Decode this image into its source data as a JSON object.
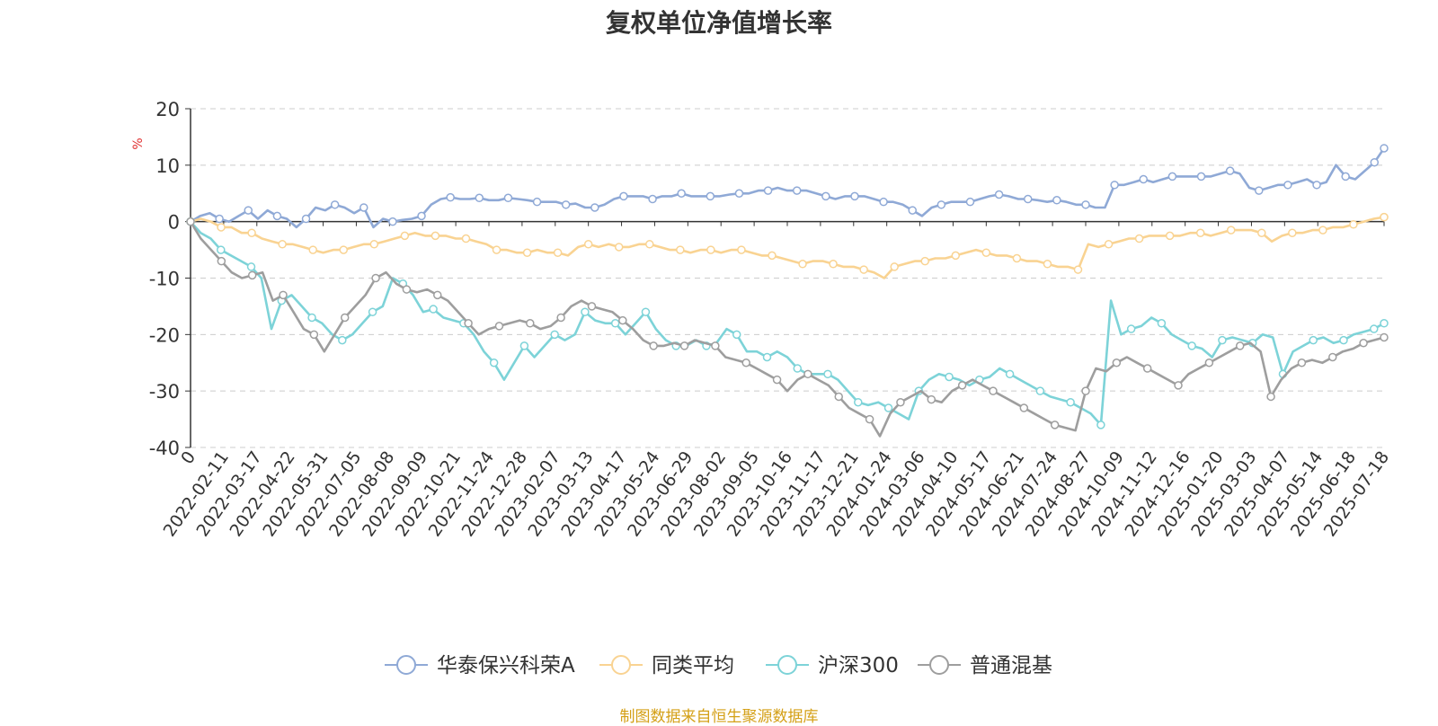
{
  "chart_data": {
    "type": "line",
    "title": "复权单位净值增长率",
    "ylabel": "%",
    "ylim": [
      -40,
      20
    ],
    "yticks": [
      "20",
      "10",
      "0",
      "-10",
      "-20",
      "-30",
      "-40"
    ],
    "x_tick_labels": [
      "0",
      "2022-02-11",
      "2022-03-17",
      "2022-04-22",
      "2022-05-31",
      "2022-07-05",
      "2022-08-08",
      "2022-09-09",
      "2022-10-21",
      "2022-11-24",
      "2022-12-28",
      "2023-02-07",
      "2023-03-13",
      "2023-04-17",
      "2023-05-24",
      "2023-06-29",
      "2023-08-02",
      "2023-09-05",
      "2023-10-16",
      "2023-11-17",
      "2023-12-21",
      "2024-01-24",
      "2024-03-06",
      "2024-04-10",
      "2024-05-17",
      "2024-06-21",
      "2024-07-24",
      "2024-08-27",
      "2024-10-09",
      "2024-11-12",
      "2024-12-16",
      "2025-01-20",
      "2025-03-03",
      "2025-04-07",
      "2025-05-14",
      "2025-06-18",
      "2025-07-18"
    ],
    "grid": "horizontal-dashed",
    "legend_position": "bottom",
    "series": [
      {
        "name": "华泰保兴科荣A",
        "color": "#8fa9d6",
        "values": [
          0,
          1.0,
          1.5,
          0.5,
          0.0,
          1.0,
          2.0,
          0.5,
          2.0,
          1.0,
          0.5,
          -1.0,
          0.5,
          2.5,
          2.0,
          3.0,
          2.5,
          1.5,
          2.5,
          -1.0,
          0.5,
          0.0,
          0.3,
          0.5,
          1.0,
          3.0,
          4.0,
          4.3,
          4.0,
          4.0,
          4.2,
          3.8,
          3.8,
          4.2,
          4.0,
          3.8,
          3.5,
          3.5,
          3.5,
          3.0,
          3.2,
          2.5,
          2.5,
          3.0,
          4.0,
          4.5,
          4.5,
          4.5,
          4.0,
          4.5,
          4.5,
          5.0,
          4.5,
          4.5,
          4.5,
          4.5,
          4.8,
          5.0,
          5.0,
          5.5,
          5.5,
          6.0,
          5.5,
          5.5,
          5.5,
          5.0,
          4.5,
          4.0,
          4.5,
          4.5,
          4.5,
          4.0,
          3.5,
          3.5,
          3.0,
          2.0,
          1.0,
          2.5,
          3.0,
          3.5,
          3.5,
          3.5,
          4.0,
          4.5,
          4.8,
          4.5,
          4.0,
          4.0,
          3.8,
          3.5,
          3.8,
          3.5,
          3.0,
          3.0,
          2.5,
          2.5,
          6.5,
          6.5,
          7.0,
          7.5,
          7.0,
          7.5,
          8.0,
          8.0,
          8.0,
          8.0,
          8.0,
          8.5,
          9.0,
          8.5,
          6.0,
          5.5,
          6.0,
          6.5,
          6.5,
          7.0,
          7.5,
          6.5,
          7.0,
          10.0,
          8.0,
          7.5,
          9.0,
          10.5,
          13.0
        ]
      },
      {
        "name": "同类平均",
        "color": "#f9d392",
        "values": [
          0,
          0.5,
          0.0,
          -1.0,
          -1.0,
          -2.0,
          -2.0,
          -3.0,
          -3.5,
          -4.0,
          -4.0,
          -4.5,
          -5.0,
          -5.5,
          -5.0,
          -5.0,
          -4.5,
          -4.0,
          -4.0,
          -3.5,
          -3.0,
          -2.5,
          -2.0,
          -2.5,
          -2.5,
          -2.5,
          -3.0,
          -3.0,
          -3.5,
          -4.0,
          -5.0,
          -5.0,
          -5.5,
          -5.5,
          -5.0,
          -5.5,
          -5.5,
          -6.0,
          -4.5,
          -4.0,
          -4.5,
          -4.0,
          -4.5,
          -4.5,
          -4.0,
          -4.0,
          -4.5,
          -5.0,
          -5.0,
          -5.5,
          -5.0,
          -5.0,
          -5.5,
          -5.0,
          -5.0,
          -5.5,
          -6.0,
          -6.0,
          -6.5,
          -7.0,
          -7.5,
          -7.0,
          -7.0,
          -7.5,
          -8.0,
          -8.0,
          -8.5,
          -9.0,
          -10.0,
          -8.0,
          -7.5,
          -7.0,
          -7.0,
          -6.5,
          -6.5,
          -6.0,
          -5.5,
          -5.0,
          -5.5,
          -6.0,
          -6.0,
          -6.5,
          -7.0,
          -7.0,
          -7.5,
          -8.0,
          -8.0,
          -8.5,
          -4.0,
          -4.5,
          -4.0,
          -3.5,
          -3.0,
          -3.0,
          -2.5,
          -2.5,
          -2.5,
          -2.5,
          -2.0,
          -2.0,
          -2.5,
          -2.0,
          -1.5,
          -1.5,
          -1.5,
          -2.0,
          -3.5,
          -2.5,
          -2.0,
          -2.0,
          -1.5,
          -1.5,
          -1.0,
          -1.0,
          -0.5,
          0.0,
          0.5,
          0.8
        ]
      },
      {
        "name": "沪深300",
        "color": "#7dd3d8",
        "values": [
          0,
          -2.0,
          -3.0,
          -5.0,
          -6.0,
          -7.0,
          -8.0,
          -10.0,
          -19.0,
          -14.0,
          -13.0,
          -15.0,
          -17.0,
          -18.0,
          -20.0,
          -21.0,
          -20.0,
          -18.0,
          -16.0,
          -15.0,
          -10.0,
          -11.0,
          -13.0,
          -16.0,
          -15.5,
          -17.0,
          -17.5,
          -18.0,
          -20.0,
          -23.0,
          -25.0,
          -28.0,
          -25.0,
          -22.0,
          -24.0,
          -22.0,
          -20.0,
          -21.0,
          -20.0,
          -16.0,
          -17.5,
          -18.0,
          -18.0,
          -20.0,
          -18.0,
          -16.0,
          -19.0,
          -21.0,
          -22.0,
          -22.0,
          -21.0,
          -22.0,
          -21.5,
          -19.0,
          -20.0,
          -23.0,
          -23.0,
          -24.0,
          -23.0,
          -24.0,
          -26.0,
          -27.0,
          -27.0,
          -27.0,
          -28.0,
          -30.0,
          -32.0,
          -32.5,
          -32.0,
          -33.0,
          -34.0,
          -35.0,
          -30.0,
          -28.0,
          -27.0,
          -27.5,
          -28.0,
          -29.0,
          -28.0,
          -27.5,
          -26.0,
          -27.0,
          -28.0,
          -29.0,
          -30.0,
          -31.0,
          -31.5,
          -32.0,
          -33.0,
          -34.0,
          -36.0,
          -14.0,
          -20.0,
          -19.0,
          -18.5,
          -17.0,
          -18.0,
          -20.0,
          -21.0,
          -22.0,
          -22.5,
          -24.0,
          -21.0,
          -20.5,
          -21.0,
          -21.5,
          -20.0,
          -20.5,
          -27.0,
          -23.0,
          -22.0,
          -21.0,
          -20.5,
          -21.5,
          -21.0,
          -20.0,
          -19.5,
          -19.0,
          -18.0
        ]
      },
      {
        "name": "普通混基",
        "color": "#9e9e9e",
        "values": [
          0,
          -3.0,
          -5.0,
          -7.0,
          -9.0,
          -10.0,
          -9.5,
          -9.0,
          -14.0,
          -13.0,
          -16.0,
          -19.0,
          -20.0,
          -23.0,
          -20.0,
          -17.0,
          -15.0,
          -13.0,
          -10.0,
          -9.0,
          -11.0,
          -12.0,
          -12.5,
          -12.0,
          -13.0,
          -14.0,
          -16.0,
          -18.0,
          -20.0,
          -19.0,
          -18.5,
          -18.0,
          -17.5,
          -18.0,
          -19.0,
          -18.5,
          -17.0,
          -15.0,
          -14.0,
          -15.0,
          -15.5,
          -16.0,
          -17.5,
          -19.0,
          -21.0,
          -22.0,
          -22.0,
          -21.5,
          -22.0,
          -21.0,
          -21.5,
          -22.0,
          -24.0,
          -24.5,
          -25.0,
          -26.0,
          -27.0,
          -28.0,
          -30.0,
          -28.0,
          -27.0,
          -28.0,
          -29.0,
          -31.0,
          -33.0,
          -34.0,
          -35.0,
          -38.0,
          -34.0,
          -32.0,
          -31.0,
          -30.0,
          -31.5,
          -32.0,
          -30.0,
          -29.0,
          -28.0,
          -29.0,
          -30.0,
          -31.0,
          -32.0,
          -33.0,
          -34.0,
          -35.0,
          -36.0,
          -36.5,
          -37.0,
          -30.0,
          -26.0,
          -26.5,
          -25.0,
          -24.0,
          -25.0,
          -26.0,
          -27.0,
          -28.0,
          -29.0,
          -27.0,
          -26.0,
          -25.0,
          -24.0,
          -23.0,
          -22.0,
          -21.5,
          -23.0,
          -31.0,
          -28.0,
          -26.0,
          -25.0,
          -24.5,
          -25.0,
          -24.0,
          -23.0,
          -22.5,
          -21.5,
          -21.0,
          -20.5
        ]
      }
    ]
  },
  "footer": {
    "source": "制图数据来自恒生聚源数据库"
  }
}
